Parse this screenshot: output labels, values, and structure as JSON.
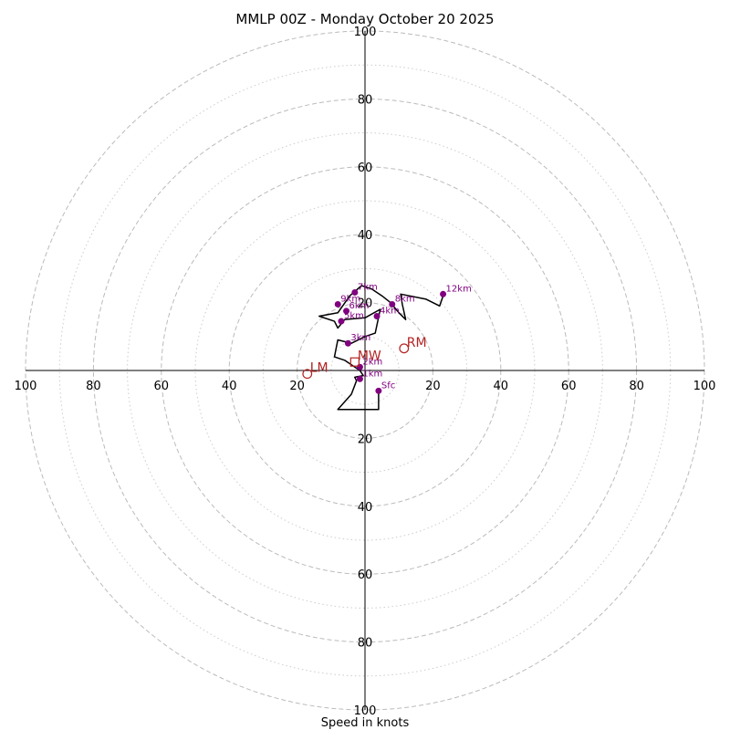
{
  "chart_data": {
    "type": "hodograph",
    "title": "MMLP 00Z - Monday October 20 2025",
    "xlabel": "Speed in knots",
    "range": 100,
    "rings": {
      "dashed": [
        20,
        40,
        60,
        80,
        100
      ],
      "dotted": [
        10,
        30,
        50,
        70,
        90
      ]
    },
    "tick_values": [
      20,
      40,
      60,
      80,
      100
    ],
    "colors": {
      "trace": "#000000",
      "height_marker": "#800080",
      "motion": "#b22222",
      "ring": "#bbbbbb",
      "axis": "#000000"
    },
    "trace": [
      [
        4,
        -6
      ],
      [
        4,
        -11.5
      ],
      [
        -8,
        -11.5
      ],
      [
        -4,
        -7
      ],
      [
        -2.5,
        -3
      ],
      [
        -3,
        -2
      ],
      [
        -0.5,
        -1.5
      ],
      [
        -1.5,
        0
      ],
      [
        -6,
        3
      ],
      [
        -9,
        4
      ],
      [
        -8,
        9
      ],
      [
        -4,
        8
      ],
      [
        0,
        10
      ],
      [
        3,
        11
      ],
      [
        4.5,
        18
      ],
      [
        0,
        15.5
      ],
      [
        -6,
        15
      ],
      [
        -8,
        12.5
      ],
      [
        -9,
        14.5
      ],
      [
        -13.5,
        16
      ],
      [
        -8,
        17
      ],
      [
        -4.5,
        22
      ],
      [
        -1,
        25
      ],
      [
        2,
        24
      ],
      [
        5,
        22
      ],
      [
        7.5,
        20
      ],
      [
        10,
        17
      ],
      [
        12,
        15
      ],
      [
        11,
        19.5
      ],
      [
        10.5,
        22.5
      ],
      [
        18,
        21
      ],
      [
        22,
        19
      ],
      [
        23,
        22
      ]
    ],
    "heights": [
      {
        "label": "Sfc",
        "u": 4,
        "v": -6
      },
      {
        "label": "1km",
        "u": -1.5,
        "v": -2.5
      },
      {
        "label": "2km",
        "u": -1.5,
        "v": 1
      },
      {
        "label": "3km",
        "u": -5,
        "v": 8
      },
      {
        "label": "4km",
        "u": 3.5,
        "v": 16
      },
      {
        "label": "5km",
        "u": -7,
        "v": 14.5
      },
      {
        "label": "6km",
        "u": -5.5,
        "v": 17.5
      },
      {
        "label": "7km",
        "u": -3,
        "v": 23
      },
      {
        "label": "8km",
        "u": 8,
        "v": 19.5
      },
      {
        "label": "9km",
        "u": -8,
        "v": 19.5
      },
      {
        "label": "12km",
        "u": 23,
        "v": 22.5
      }
    ],
    "motions": [
      {
        "label": "RM",
        "u": 11.5,
        "v": 6.5,
        "marker": "circle"
      },
      {
        "label": "LM",
        "u": -17,
        "v": -1,
        "marker": "circle"
      },
      {
        "label": "MW",
        "u": -3,
        "v": 2.5,
        "marker": "square"
      }
    ]
  }
}
